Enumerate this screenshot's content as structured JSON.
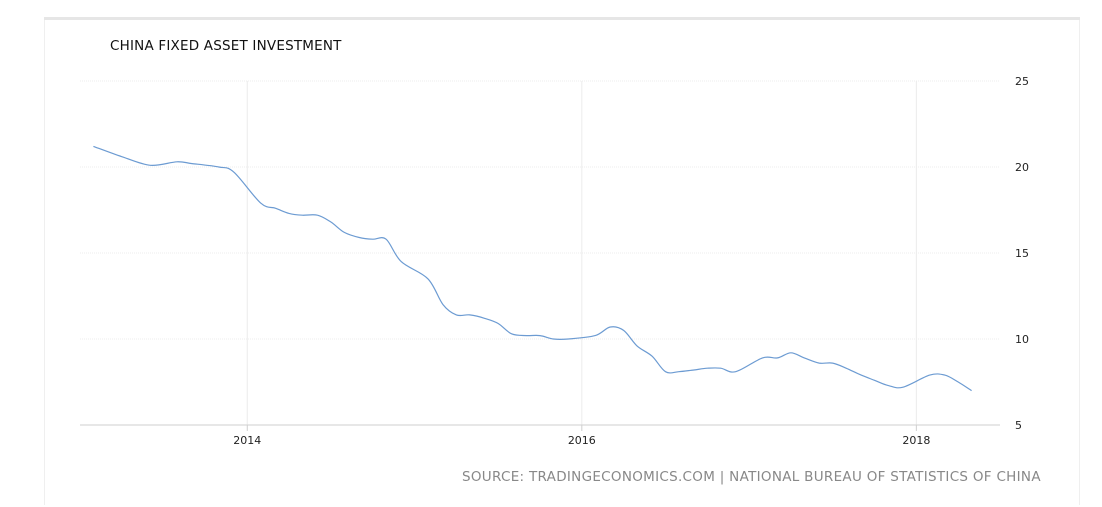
{
  "chart_data": {
    "type": "line",
    "title": "CHINA FIXED ASSET INVESTMENT",
    "source": "SOURCE: TRADINGECONOMICS.COM | NATIONAL BUREAU OF STATISTICS OF CHINA",
    "xlabel": "",
    "ylabel": "",
    "xlim": [
      2013.0,
      2018.5
    ],
    "ylim": [
      5,
      25
    ],
    "x_ticks": [
      {
        "value": 2014,
        "label": "2014"
      },
      {
        "value": 2016,
        "label": "2016"
      },
      {
        "value": 2018,
        "label": "2018"
      }
    ],
    "y_ticks": [
      {
        "value": 25,
        "label": "25"
      },
      {
        "value": 20,
        "label": "20"
      },
      {
        "value": 15,
        "label": "15"
      },
      {
        "value": 10,
        "label": "10"
      },
      {
        "value": 5,
        "label": "5"
      }
    ],
    "y_axis_side": "right",
    "grid": true,
    "line_color": "#6c9bd2",
    "series": [
      {
        "x": [
          2013.08,
          2013.25,
          2013.42,
          2013.58,
          2013.67,
          2013.83,
          2013.92,
          2014.08,
          2014.17,
          2014.25,
          2014.33,
          2014.42,
          2014.5,
          2014.58,
          2014.67,
          2014.75,
          2014.83,
          2014.92,
          2015.08,
          2015.17,
          2015.25,
          2015.33,
          2015.42,
          2015.5,
          2015.58,
          2015.67,
          2015.75,
          2015.83,
          2015.92,
          2016.08,
          2016.17,
          2016.25,
          2016.33,
          2016.42,
          2016.5,
          2016.58,
          2016.67,
          2016.75,
          2016.83,
          2016.92,
          2017.08,
          2017.17,
          2017.25,
          2017.33,
          2017.42,
          2017.5,
          2017.58,
          2017.67,
          2017.75,
          2017.83,
          2017.92,
          2018.08,
          2018.17,
          2018.25,
          2018.33
        ],
        "y": [
          21.2,
          20.6,
          20.1,
          20.3,
          20.2,
          20.0,
          19.7,
          17.9,
          17.6,
          17.3,
          17.2,
          17.2,
          16.8,
          16.2,
          15.9,
          15.8,
          15.8,
          14.5,
          13.5,
          12.0,
          11.4,
          11.4,
          11.2,
          10.9,
          10.3,
          10.2,
          10.2,
          10.0,
          10.0,
          10.2,
          10.7,
          10.5,
          9.6,
          9.0,
          8.1,
          8.1,
          8.2,
          8.3,
          8.3,
          8.1,
          8.9,
          8.9,
          9.2,
          8.9,
          8.6,
          8.6,
          8.3,
          7.9,
          7.6,
          7.3,
          7.2,
          7.9,
          7.9,
          7.5,
          7.0
        ]
      }
    ]
  }
}
